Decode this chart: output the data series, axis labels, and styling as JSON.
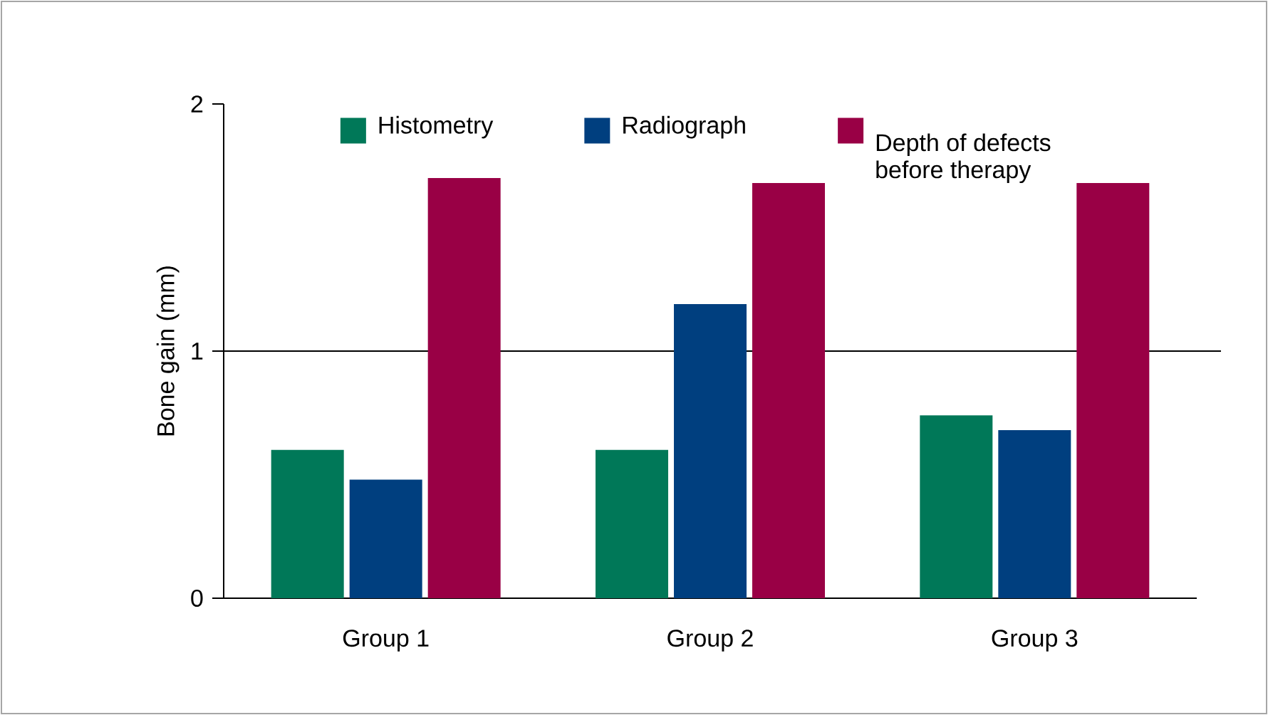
{
  "chart_data": {
    "type": "bar",
    "ylabel": "Bone gain (mm)",
    "categories": [
      "Group 1",
      "Group 2",
      "Group 3"
    ],
    "series": [
      {
        "name": "Histometry",
        "color": "#007858",
        "values": [
          0.6,
          0.6,
          0.74
        ]
      },
      {
        "name": "Radiograph",
        "color": "#003f7f",
        "values": [
          0.48,
          1.19,
          0.68
        ]
      },
      {
        "name": "Depth of defects before therapy",
        "color": "#990045",
        "values": [
          1.7,
          1.68,
          1.68
        ]
      }
    ],
    "ylim": [
      0,
      2
    ],
    "yticks": [
      0,
      1,
      2
    ],
    "ref_lines": [
      {
        "axis": "y",
        "value": 1,
        "color": "#000000"
      }
    ],
    "legend": "top"
  }
}
